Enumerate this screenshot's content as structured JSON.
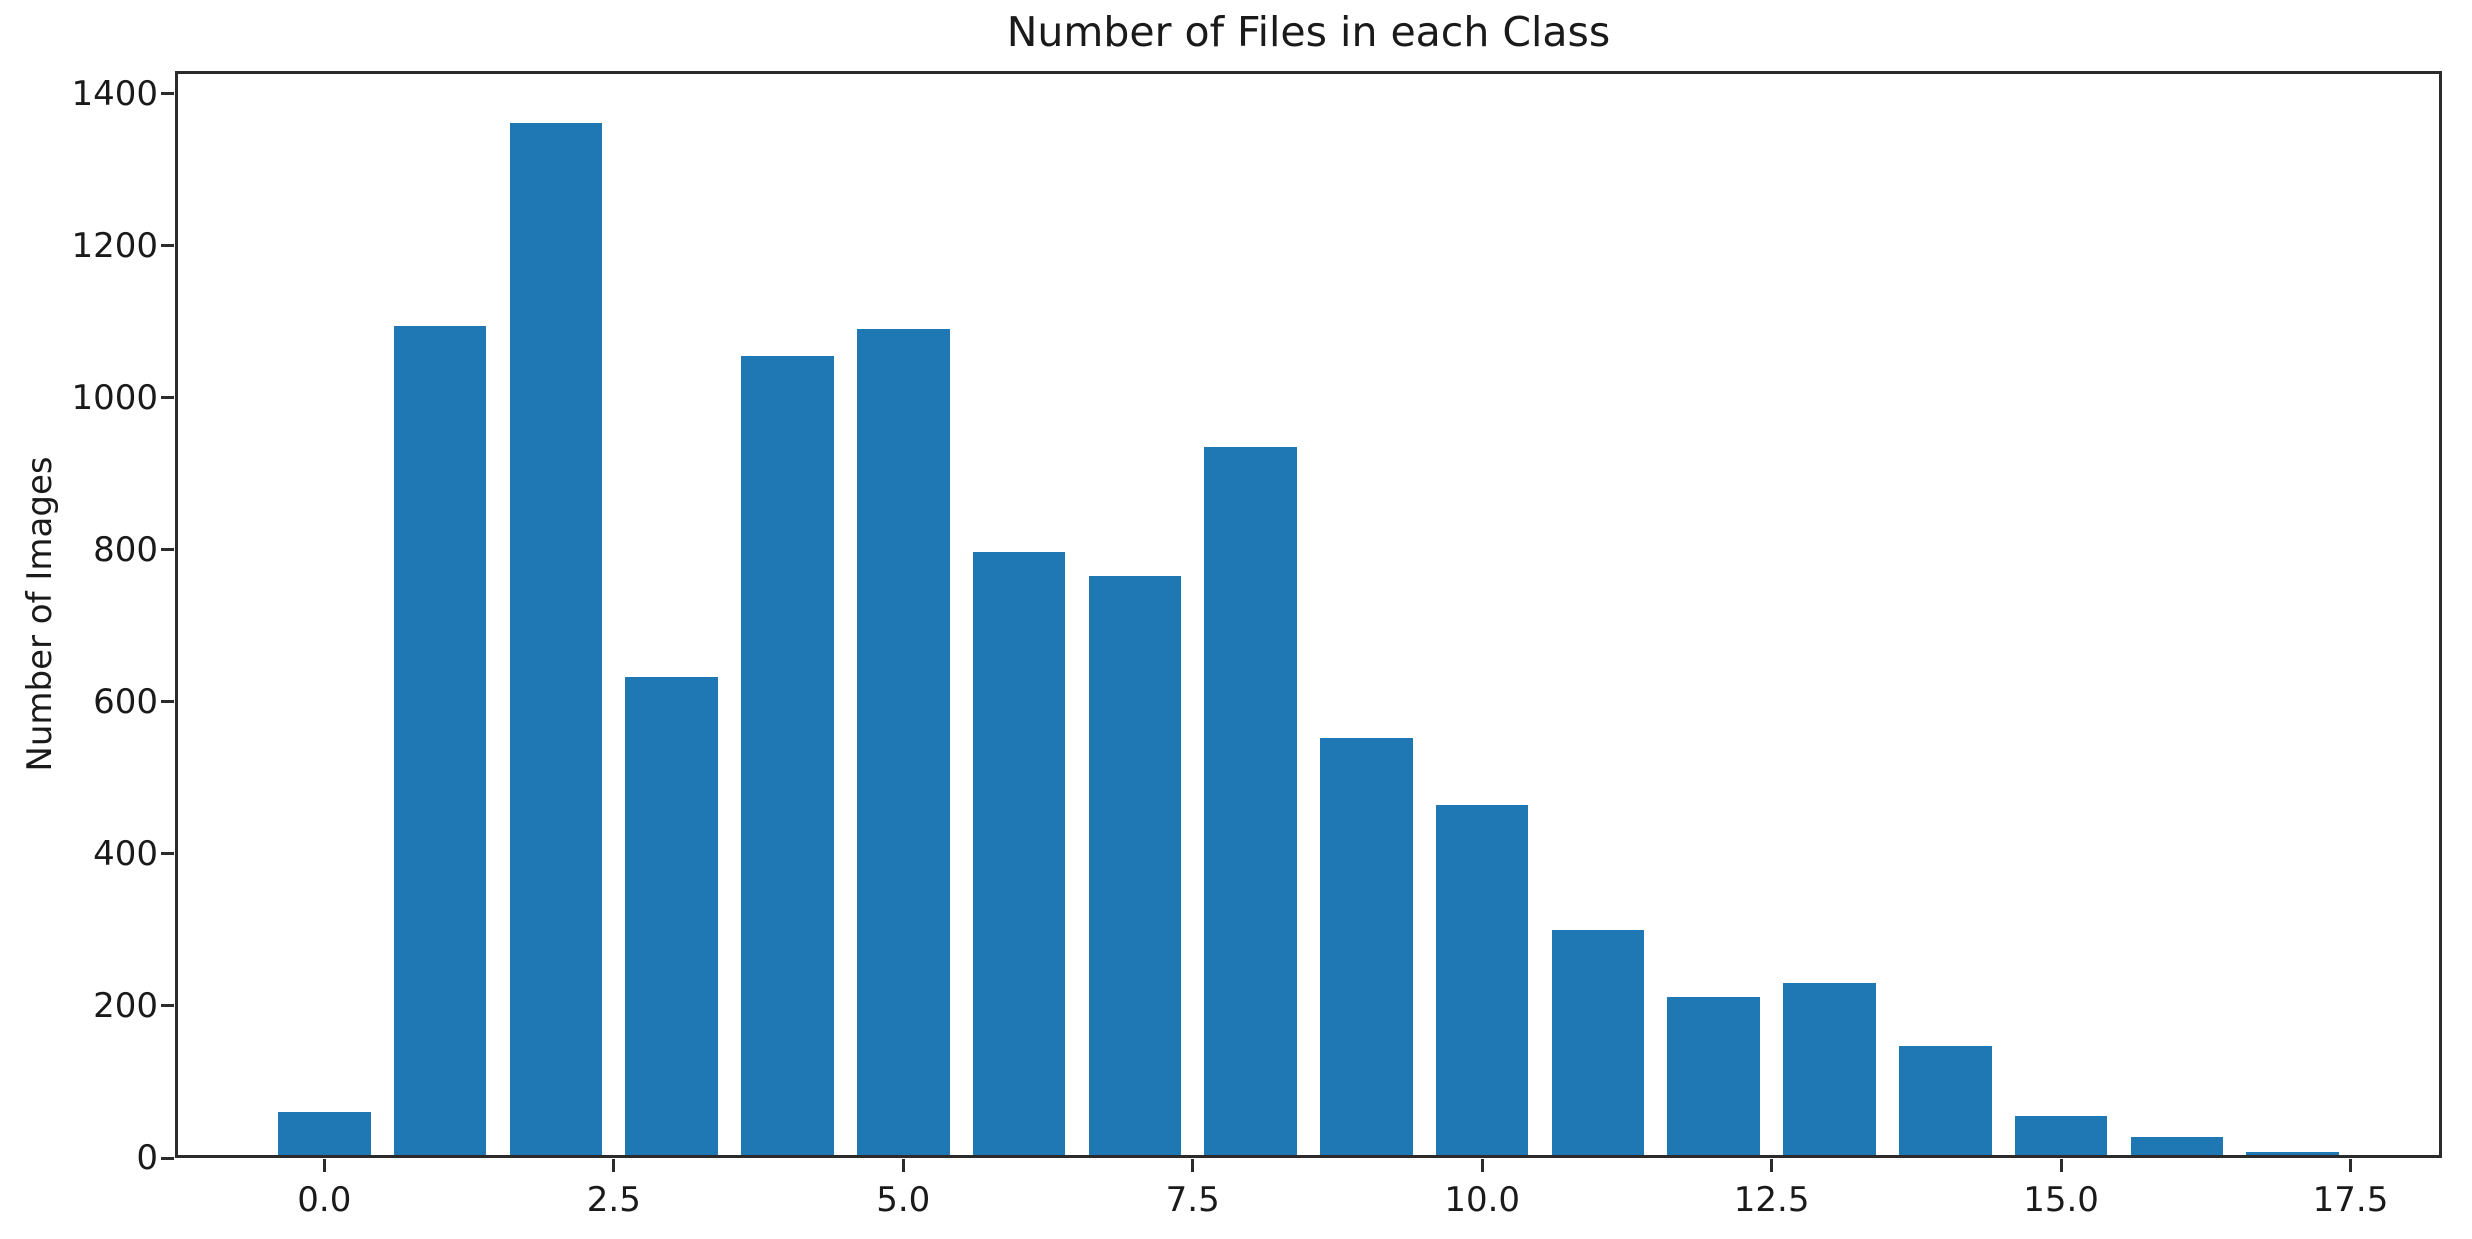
{
  "chart_data": {
    "type": "bar",
    "title": "Number of Files in each Class",
    "xlabel": "",
    "ylabel": "Number of Images",
    "categories": [
      0,
      1,
      2,
      3,
      4,
      5,
      6,
      7,
      8,
      9,
      10,
      11,
      12,
      13,
      14,
      15,
      16,
      17
    ],
    "values": [
      60,
      1095,
      1362,
      633,
      1055,
      1090,
      797,
      766,
      935,
      553,
      464,
      300,
      212,
      230,
      148,
      55,
      28,
      8
    ],
    "bar_color": "#1f77b4",
    "bar_width_units": 0.8,
    "xlim": [
      -1.29,
      18.29
    ],
    "ylim": [
      0,
      1430
    ],
    "xticks": [
      0,
      2.5,
      5,
      7.5,
      10,
      12.5,
      15,
      17.5
    ],
    "xtick_labels": [
      "0.0",
      "2.5",
      "5.0",
      "7.5",
      "10.0",
      "12.5",
      "15.0",
      "17.5"
    ],
    "yticks": [
      0,
      200,
      400,
      600,
      800,
      1000,
      1200,
      1400
    ],
    "ytick_labels": [
      "0",
      "200",
      "400",
      "600",
      "800",
      "1000",
      "1200",
      "1400"
    ],
    "grid": false,
    "legend": null
  }
}
